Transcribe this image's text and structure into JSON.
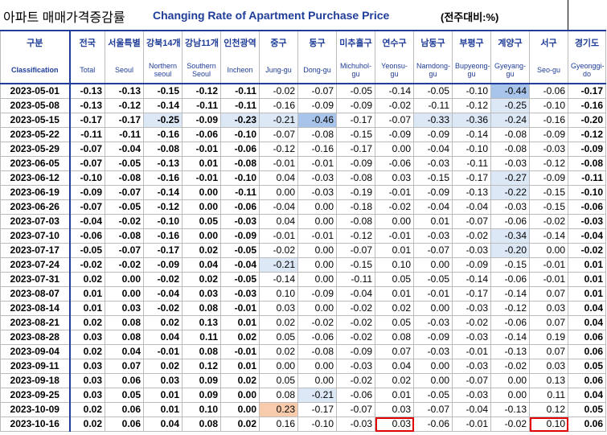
{
  "title": {
    "korean": "아파트 매매가격증감률",
    "english": "Changing Rate of Apartment Purchase Price",
    "unit": "(전주대비:%)"
  },
  "table": {
    "header_korean": [
      "구분",
      "전국",
      "서울특별",
      "강북14개",
      "강남11개",
      "인천광역",
      "중구",
      "동구",
      "미추홀구",
      "연수구",
      "남동구",
      "부평구",
      "계양구",
      "서구",
      "경기도"
    ],
    "header_english": [
      "Classification",
      "Total",
      "Seoul",
      "Northern seoul",
      "Southern Seoul",
      "Incheon",
      "Jung-gu",
      "Dong-gu",
      "Michuhol-gu",
      "Yeonsu-gu",
      "Namdong-gu",
      "Bupyeong-gu",
      "Gyeyang-gu",
      "Seo-gu",
      "Gyeonggi-do"
    ],
    "rows": [
      [
        "2023-05-01",
        "-0.13",
        "-0.13",
        "-0.15",
        "-0.12",
        "-0.11",
        "-0.02",
        "-0.07",
        "-0.05",
        "-0.14",
        "-0.05",
        "-0.10",
        "-0.44",
        "-0.06",
        "-0.17"
      ],
      [
        "2023-05-08",
        "-0.13",
        "-0.12",
        "-0.14",
        "-0.11",
        "-0.11",
        "-0.16",
        "-0.09",
        "-0.09",
        "-0.02",
        "-0.11",
        "-0.12",
        "-0.25",
        "-0.10",
        "-0.16"
      ],
      [
        "2023-05-15",
        "-0.17",
        "-0.17",
        "-0.25",
        "-0.09",
        "-0.23",
        "-0.21",
        "-0.46",
        "-0.17",
        "-0.07",
        "-0.33",
        "-0.36",
        "-0.24",
        "-0.16",
        "-0.20"
      ],
      [
        "2023-05-22",
        "-0.11",
        "-0.11",
        "-0.16",
        "-0.06",
        "-0.10",
        "-0.07",
        "-0.08",
        "-0.15",
        "-0.09",
        "-0.09",
        "-0.14",
        "-0.08",
        "-0.09",
        "-0.12"
      ],
      [
        "2023-05-29",
        "-0.07",
        "-0.04",
        "-0.08",
        "-0.01",
        "-0.06",
        "-0.12",
        "-0.16",
        "-0.17",
        "0.00",
        "-0.04",
        "-0.10",
        "-0.08",
        "-0.03",
        "-0.09"
      ],
      [
        "2023-06-05",
        "-0.07",
        "-0.05",
        "-0.13",
        "0.01",
        "-0.08",
        "-0.01",
        "-0.01",
        "-0.09",
        "-0.06",
        "-0.03",
        "-0.11",
        "-0.03",
        "-0.12",
        "-0.08"
      ],
      [
        "2023-06-12",
        "-0.10",
        "-0.08",
        "-0.16",
        "-0.01",
        "-0.10",
        "0.04",
        "-0.03",
        "-0.08",
        "0.03",
        "-0.15",
        "-0.17",
        "-0.27",
        "-0.09",
        "-0.11"
      ],
      [
        "2023-06-19",
        "-0.09",
        "-0.07",
        "-0.14",
        "0.00",
        "-0.11",
        "0.00",
        "-0.03",
        "-0.19",
        "-0.01",
        "-0.09",
        "-0.13",
        "-0.22",
        "-0.15",
        "-0.10"
      ],
      [
        "2023-06-26",
        "-0.07",
        "-0.05",
        "-0.12",
        "0.00",
        "-0.06",
        "-0.04",
        "0.00",
        "-0.18",
        "-0.02",
        "-0.04",
        "-0.04",
        "-0.03",
        "-0.15",
        "-0.06"
      ],
      [
        "2023-07-03",
        "-0.04",
        "-0.02",
        "-0.10",
        "0.05",
        "-0.03",
        "0.04",
        "0.00",
        "-0.08",
        "0.00",
        "0.01",
        "-0.07",
        "-0.06",
        "-0.02",
        "-0.03"
      ],
      [
        "2023-07-10",
        "-0.06",
        "-0.08",
        "-0.16",
        "0.00",
        "-0.09",
        "-0.01",
        "-0.01",
        "-0.12",
        "-0.01",
        "-0.03",
        "-0.02",
        "-0.34",
        "-0.14",
        "-0.04"
      ],
      [
        "2023-07-17",
        "-0.05",
        "-0.07",
        "-0.17",
        "0.02",
        "-0.05",
        "-0.02",
        "0.00",
        "-0.07",
        "0.01",
        "-0.07",
        "-0.03",
        "-0.20",
        "0.00",
        "-0.02"
      ],
      [
        "2023-07-24",
        "-0.02",
        "-0.02",
        "-0.09",
        "0.04",
        "-0.04",
        "-0.21",
        "0.00",
        "-0.15",
        "0.10",
        "0.00",
        "-0.09",
        "-0.15",
        "-0.01",
        "0.01"
      ],
      [
        "2023-07-31",
        "0.02",
        "0.00",
        "-0.02",
        "0.02",
        "-0.05",
        "-0.14",
        "0.00",
        "-0.11",
        "0.05",
        "-0.05",
        "-0.14",
        "-0.06",
        "-0.01",
        "0.01"
      ],
      [
        "2023-08-07",
        "0.01",
        "0.00",
        "-0.04",
        "0.03",
        "-0.03",
        "0.10",
        "-0.09",
        "-0.04",
        "0.01",
        "-0.01",
        "-0.17",
        "-0.14",
        "0.07",
        "0.01"
      ],
      [
        "2023-08-14",
        "0.01",
        "0.03",
        "-0.02",
        "0.08",
        "-0.01",
        "0.03",
        "0.00",
        "-0.02",
        "0.02",
        "0.00",
        "-0.03",
        "-0.12",
        "0.03",
        "0.04"
      ],
      [
        "2023-08-21",
        "0.02",
        "0.08",
        "0.02",
        "0.13",
        "0.01",
        "0.02",
        "-0.02",
        "-0.02",
        "0.05",
        "-0.03",
        "-0.02",
        "-0.06",
        "0.07",
        "0.04"
      ],
      [
        "2023-08-28",
        "0.03",
        "0.08",
        "0.04",
        "0.11",
        "0.02",
        "0.05",
        "-0.06",
        "-0.02",
        "0.08",
        "-0.09",
        "-0.03",
        "-0.14",
        "0.19",
        "0.06"
      ],
      [
        "2023-09-04",
        "0.02",
        "0.04",
        "-0.01",
        "0.08",
        "-0.01",
        "0.02",
        "-0.08",
        "-0.09",
        "0.07",
        "-0.03",
        "-0.01",
        "-0.13",
        "0.07",
        "0.06"
      ],
      [
        "2023-09-11",
        "0.03",
        "0.07",
        "0.02",
        "0.12",
        "0.01",
        "0.00",
        "0.00",
        "-0.03",
        "0.04",
        "0.00",
        "-0.03",
        "-0.02",
        "0.03",
        "0.05"
      ],
      [
        "2023-09-18",
        "0.03",
        "0.06",
        "0.03",
        "0.09",
        "0.02",
        "0.05",
        "0.00",
        "-0.02",
        "0.02",
        "0.00",
        "-0.07",
        "0.00",
        "0.13",
        "0.06"
      ],
      [
        "2023-09-25",
        "0.03",
        "0.05",
        "0.01",
        "0.09",
        "0.00",
        "0.08",
        "-0.21",
        "-0.06",
        "0.01",
        "-0.05",
        "-0.03",
        "0.00",
        "0.11",
        "0.04"
      ],
      [
        "2023-10-09",
        "0.02",
        "0.06",
        "0.01",
        "0.10",
        "0.00",
        "0.23",
        "-0.17",
        "-0.07",
        "0.03",
        "-0.07",
        "-0.04",
        "-0.13",
        "0.12",
        "0.05"
      ],
      [
        "2023-10-16",
        "0.02",
        "0.06",
        "0.04",
        "0.08",
        "0.02",
        "0.16",
        "-0.10",
        "-0.03",
        "0.03",
        "-0.06",
        "-0.01",
        "-0.02",
        "0.10",
        "0.06"
      ]
    ]
  }
}
